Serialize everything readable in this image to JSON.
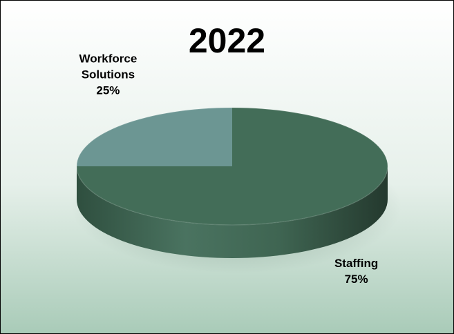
{
  "chart_data": {
    "type": "pie",
    "title": "2022",
    "slices": [
      {
        "label": [
          "Staffing"
        ],
        "value": 75,
        "value_label": "75%",
        "color": "#436d58"
      },
      {
        "label": [
          "Workforce",
          "Solutions"
        ],
        "value": 25,
        "value_label": "25%",
        "color": "#6c9693"
      }
    ],
    "style": "3d",
    "legend": "none",
    "label_position": "outside"
  }
}
